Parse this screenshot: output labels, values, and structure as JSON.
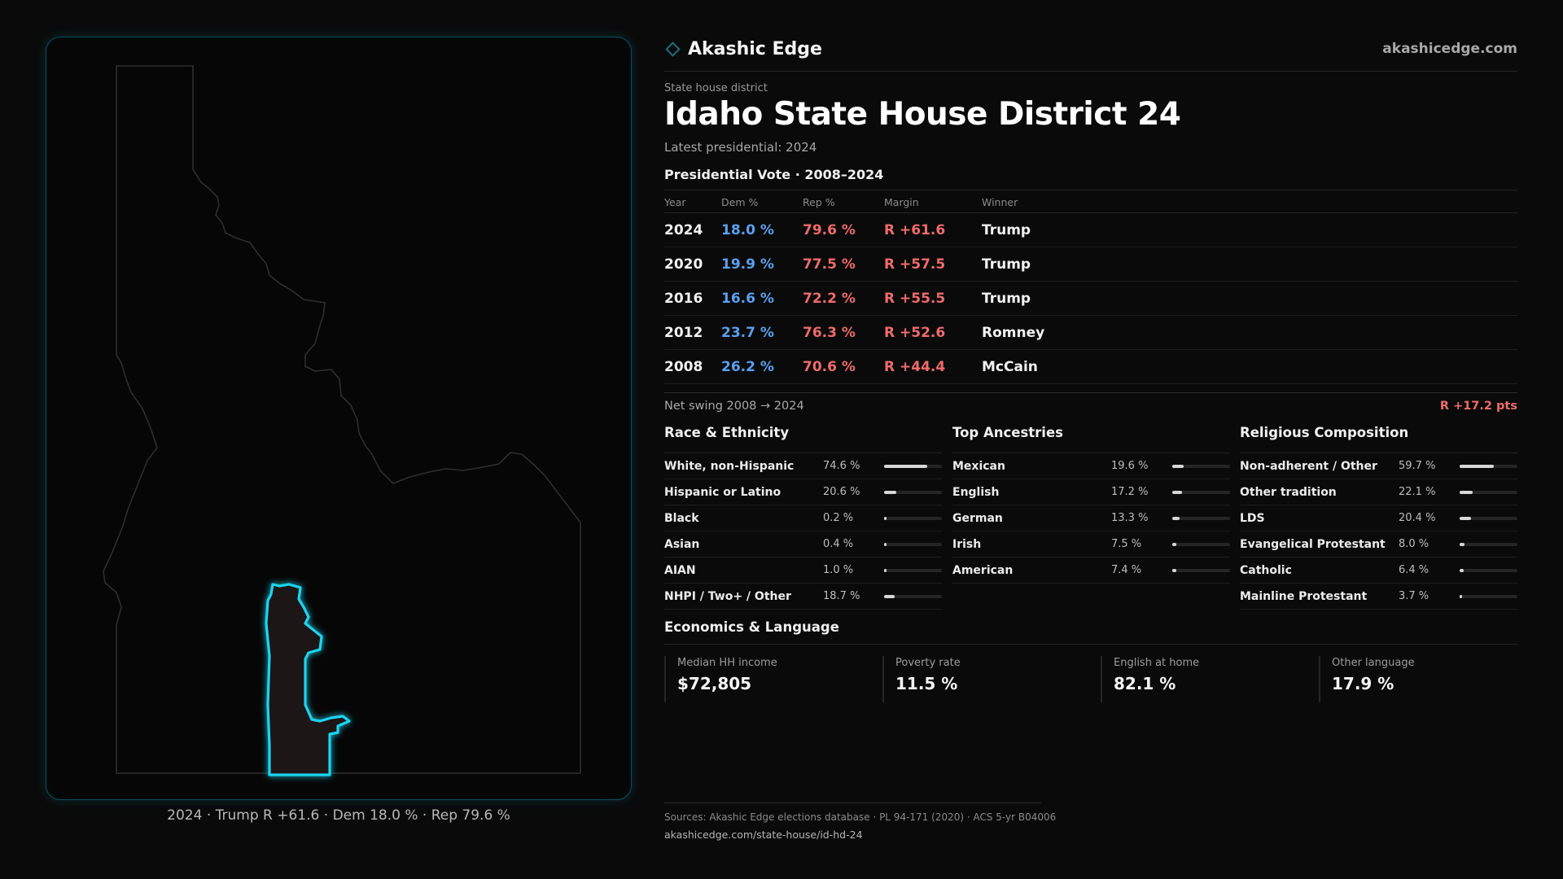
{
  "brand": {
    "name": "Akashic Edge",
    "site": "akashicedge.com",
    "icon": "diamond-icon"
  },
  "header": {
    "eyebrow": "State house district",
    "title": "Idaho State House District 24",
    "subtitle": "Latest presidential: 2024"
  },
  "map": {
    "caption": "2024 · Trump R +61.6 · Dem 18.0 % · Rep 79.6 %",
    "highlight_color": "#1fd4f0"
  },
  "presidential": {
    "heading": "Presidential Vote · 2008–2024",
    "columns": {
      "year": "Year",
      "dem": "Dem %",
      "rep": "Rep %",
      "margin": "Margin",
      "winner": "Winner"
    },
    "rows": [
      {
        "year": "2024",
        "dem": "18.0 %",
        "rep": "79.6 %",
        "margin": "R +61.6",
        "winner": "Trump"
      },
      {
        "year": "2020",
        "dem": "19.9 %",
        "rep": "77.5 %",
        "margin": "R +57.5",
        "winner": "Trump"
      },
      {
        "year": "2016",
        "dem": "16.6 %",
        "rep": "72.2 %",
        "margin": "R +55.5",
        "winner": "Trump"
      },
      {
        "year": "2012",
        "dem": "23.7 %",
        "rep": "76.3 %",
        "margin": "R +52.6",
        "winner": "Romney"
      },
      {
        "year": "2008",
        "dem": "26.2 %",
        "rep": "70.6 %",
        "margin": "R +44.4",
        "winner": "McCain"
      }
    ],
    "swing_label": "Net swing 2008 → 2024",
    "swing_value": "R +17.2 pts"
  },
  "race": {
    "heading": "Race & Ethnicity",
    "items": [
      {
        "label": "White, non-Hispanic",
        "pct": "74.6 %",
        "value": 74.6
      },
      {
        "label": "Hispanic or Latino",
        "pct": "20.6 %",
        "value": 20.6
      },
      {
        "label": "Black",
        "pct": "0.2 %",
        "value": 0.2
      },
      {
        "label": "Asian",
        "pct": "0.4 %",
        "value": 0.4
      },
      {
        "label": "AIAN",
        "pct": "1.0 %",
        "value": 1.0
      },
      {
        "label": "NHPI / Two+ / Other",
        "pct": "18.7 %",
        "value": 18.7
      }
    ]
  },
  "ancestry": {
    "heading": "Top Ancestries",
    "items": [
      {
        "label": "Mexican",
        "pct": "19.6 %",
        "value": 19.6
      },
      {
        "label": "English",
        "pct": "17.2 %",
        "value": 17.2
      },
      {
        "label": "German",
        "pct": "13.3 %",
        "value": 13.3
      },
      {
        "label": "Irish",
        "pct": "7.5 %",
        "value": 7.5
      },
      {
        "label": "American",
        "pct": "7.4 %",
        "value": 7.4
      }
    ]
  },
  "religion": {
    "heading": "Religious Composition",
    "items": [
      {
        "label": "Non-adherent / Other",
        "pct": "59.7 %",
        "value": 59.7
      },
      {
        "label": "Other tradition",
        "pct": "22.1 %",
        "value": 22.1
      },
      {
        "label": "LDS",
        "pct": "20.4 %",
        "value": 20.4
      },
      {
        "label": "Evangelical Protestant",
        "pct": "8.0 %",
        "value": 8.0
      },
      {
        "label": "Catholic",
        "pct": "6.4 %",
        "value": 6.4
      },
      {
        "label": "Mainline Protestant",
        "pct": "3.7 %",
        "value": 3.7
      }
    ]
  },
  "economics": {
    "heading": "Economics & Language",
    "items": [
      {
        "label": "Median HH income",
        "value": "$72,805"
      },
      {
        "label": "Poverty rate",
        "value": "11.5 %"
      },
      {
        "label": "English at home",
        "value": "82.1 %"
      },
      {
        "label": "Other language",
        "value": "17.9 %"
      }
    ]
  },
  "footer": {
    "sources": "Sources: Akashic Edge elections database · PL 94-171 (2020) · ACS 5-yr B04006",
    "url": "akashicedge.com/state-house/id-hd-24"
  }
}
